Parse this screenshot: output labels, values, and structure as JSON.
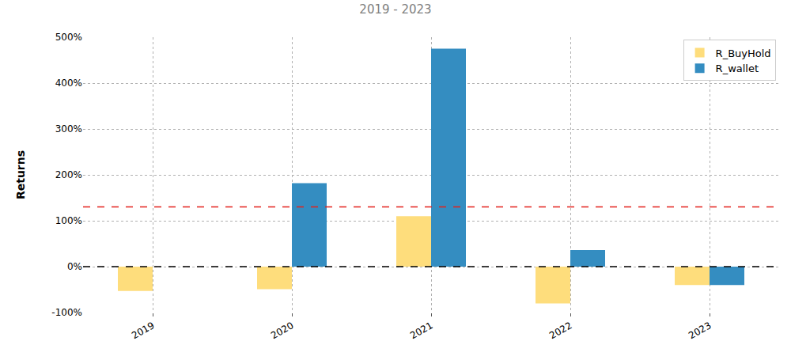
{
  "chart_data": {
    "type": "bar",
    "title": "2019 - 2023",
    "y_label": "Returns",
    "categories": [
      "2019",
      "2020",
      "2021",
      "2022",
      "2023"
    ],
    "series": [
      {
        "name": "R_BuyHold",
        "color": "#fedd7c",
        "values": [
          -53,
          -49,
          110,
          -80,
          -40
        ]
      },
      {
        "name": "R_wallet",
        "color": "#348dc1",
        "values": [
          0,
          182,
          475,
          36,
          -40
        ]
      }
    ],
    "reference_lines": [
      {
        "value": 130,
        "color": "#e3211c",
        "line_style": "dashed"
      },
      {
        "value": 0,
        "color": "#000000",
        "line_style": "dashed"
      }
    ],
    "ylim": [
      -100,
      500
    ],
    "yticks": [
      {
        "value": -100,
        "label": "-100%"
      },
      {
        "value": 0,
        "label": "0%"
      },
      {
        "value": 100,
        "label": "100%"
      },
      {
        "value": 200,
        "label": "200%"
      },
      {
        "value": 300,
        "label": "300%"
      },
      {
        "value": 400,
        "label": "400%"
      },
      {
        "value": 500,
        "label": "500%"
      }
    ],
    "grid": true,
    "legend": "upper right"
  }
}
